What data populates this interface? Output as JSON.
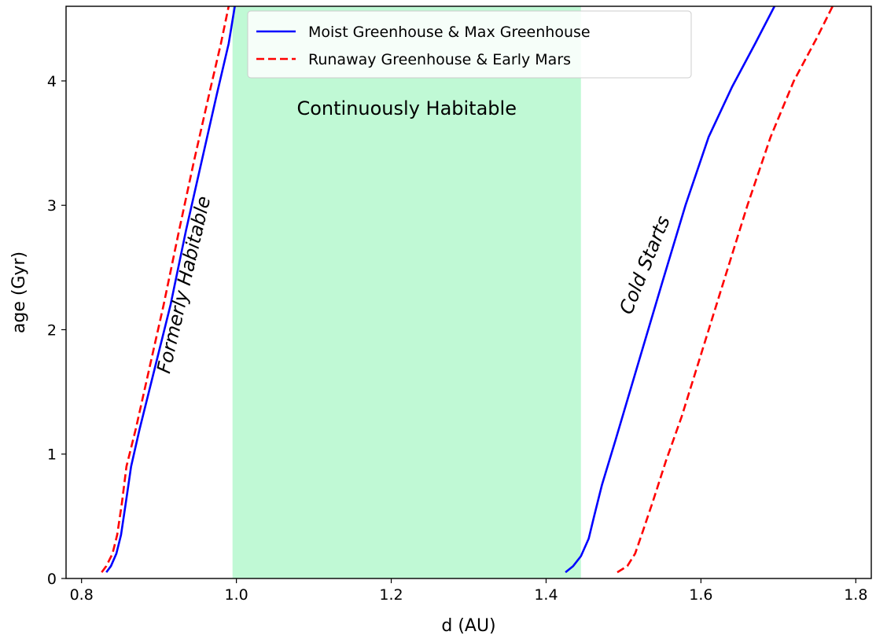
{
  "chart_data": {
    "type": "line",
    "xlabel": "d (AU)",
    "ylabel": "age (Gyr)",
    "xlim": [
      0.78,
      1.82
    ],
    "ylim": [
      0,
      4.6
    ],
    "x_ticks": [
      "0.8",
      "1.0",
      "1.2",
      "1.4",
      "1.6",
      "1.8"
    ],
    "y_ticks": [
      "0",
      "1",
      "2",
      "3",
      "4"
    ],
    "grid": false,
    "legend_position": "top-center",
    "shaded_region": {
      "label": "Continuously Habitable",
      "x": [
        0.995,
        1.445
      ],
      "color": "#c0f9d5"
    },
    "annotations": [
      {
        "text": "Formerly Habitable",
        "style": "italic",
        "x": 0.94,
        "y": 2.35,
        "rotation_deg": -77
      },
      {
        "text": "Cold Starts",
        "style": "italic",
        "x": 1.535,
        "y": 2.5,
        "rotation_deg": -68
      }
    ],
    "series": [
      {
        "name": "Moist Greenhouse & Max Greenhouse",
        "color": "#0000ff",
        "dash": "solid",
        "segments": [
          [
            [
              0.832,
              0.05
            ],
            [
              0.838,
              0.1
            ],
            [
              0.845,
              0.2
            ],
            [
              0.851,
              0.35
            ],
            [
              0.857,
              0.6
            ],
            [
              0.864,
              0.9
            ],
            [
              0.875,
              1.2
            ],
            [
              0.895,
              1.7
            ],
            [
              0.915,
              2.2
            ],
            [
              0.935,
              2.8
            ],
            [
              0.955,
              3.35
            ],
            [
              0.975,
              3.9
            ],
            [
              0.99,
              4.3
            ],
            [
              0.998,
              4.6
            ]
          ],
          [
            [
              1.425,
              0.05
            ],
            [
              1.435,
              0.1
            ],
            [
              1.445,
              0.18
            ],
            [
              1.455,
              0.32
            ],
            [
              1.462,
              0.5
            ],
            [
              1.472,
              0.75
            ],
            [
              1.49,
              1.12
            ],
            [
              1.52,
              1.75
            ],
            [
              1.55,
              2.38
            ],
            [
              1.58,
              3.0
            ],
            [
              1.61,
              3.55
            ],
            [
              1.64,
              3.95
            ],
            [
              1.67,
              4.3
            ],
            [
              1.695,
              4.6
            ]
          ]
        ]
      },
      {
        "name": "Runaway Greenhouse & Early Mars",
        "color": "#ff0000",
        "dash": "dashed",
        "segments": [
          [
            [
              0.826,
              0.05
            ],
            [
              0.832,
              0.1
            ],
            [
              0.84,
              0.2
            ],
            [
              0.846,
              0.35
            ],
            [
              0.852,
              0.6
            ],
            [
              0.858,
              0.9
            ],
            [
              0.87,
              1.2
            ],
            [
              0.888,
              1.7
            ],
            [
              0.906,
              2.2
            ],
            [
              0.926,
              2.8
            ],
            [
              0.945,
              3.35
            ],
            [
              0.965,
              3.9
            ],
            [
              0.98,
              4.3
            ],
            [
              0.99,
              4.6
            ]
          ],
          [
            [
              1.492,
              0.05
            ],
            [
              1.505,
              0.1
            ],
            [
              1.515,
              0.2
            ],
            [
              1.525,
              0.38
            ],
            [
              1.538,
              0.62
            ],
            [
              1.555,
              0.95
            ],
            [
              1.575,
              1.3
            ],
            [
              1.6,
              1.8
            ],
            [
              1.63,
              2.4
            ],
            [
              1.66,
              3.0
            ],
            [
              1.69,
              3.55
            ],
            [
              1.72,
              4.0
            ],
            [
              1.75,
              4.35
            ],
            [
              1.77,
              4.6
            ]
          ]
        ]
      }
    ]
  }
}
